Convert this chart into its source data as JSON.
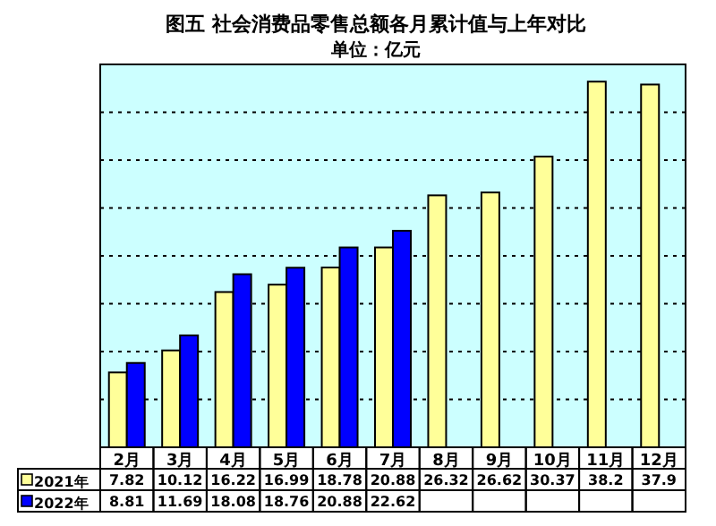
{
  "chart_data": {
    "type": "bar",
    "title": "图五  社会消费品零售总额各月累计值与上年对比",
    "subtitle": "单位：亿元",
    "categories": [
      "2月",
      "3月",
      "4月",
      "5月",
      "6月",
      "7月",
      "8月",
      "9月",
      "10月",
      "11月",
      "12月"
    ],
    "series": [
      {
        "name": "2021年",
        "color": "#ffff99",
        "values": [
          7.82,
          10.12,
          16.22,
          16.99,
          18.78,
          20.88,
          26.32,
          26.62,
          30.37,
          38.2,
          37.9
        ]
      },
      {
        "name": "2022年",
        "color": "#0000ff",
        "values": [
          8.81,
          11.69,
          18.08,
          18.76,
          20.88,
          22.62,
          null,
          null,
          null,
          null,
          null
        ]
      }
    ],
    "ylim": [
      0,
      40
    ],
    "yticks": [
      {
        "value": 0,
        "label": null
      },
      {
        "value": 5,
        "label": null
      },
      {
        "value": 10,
        "label": null
      },
      {
        "value": 15,
        "label": null
      },
      {
        "value": 20,
        "label": null
      },
      {
        "value": 25,
        "label": null
      },
      {
        "value": 30,
        "label": null
      },
      {
        "value": 35,
        "label": null
      },
      {
        "value": 40,
        "label": null
      }
    ],
    "tick_labels": "x",
    "grid": "y",
    "data_labels": true,
    "legend": "bottom"
  }
}
